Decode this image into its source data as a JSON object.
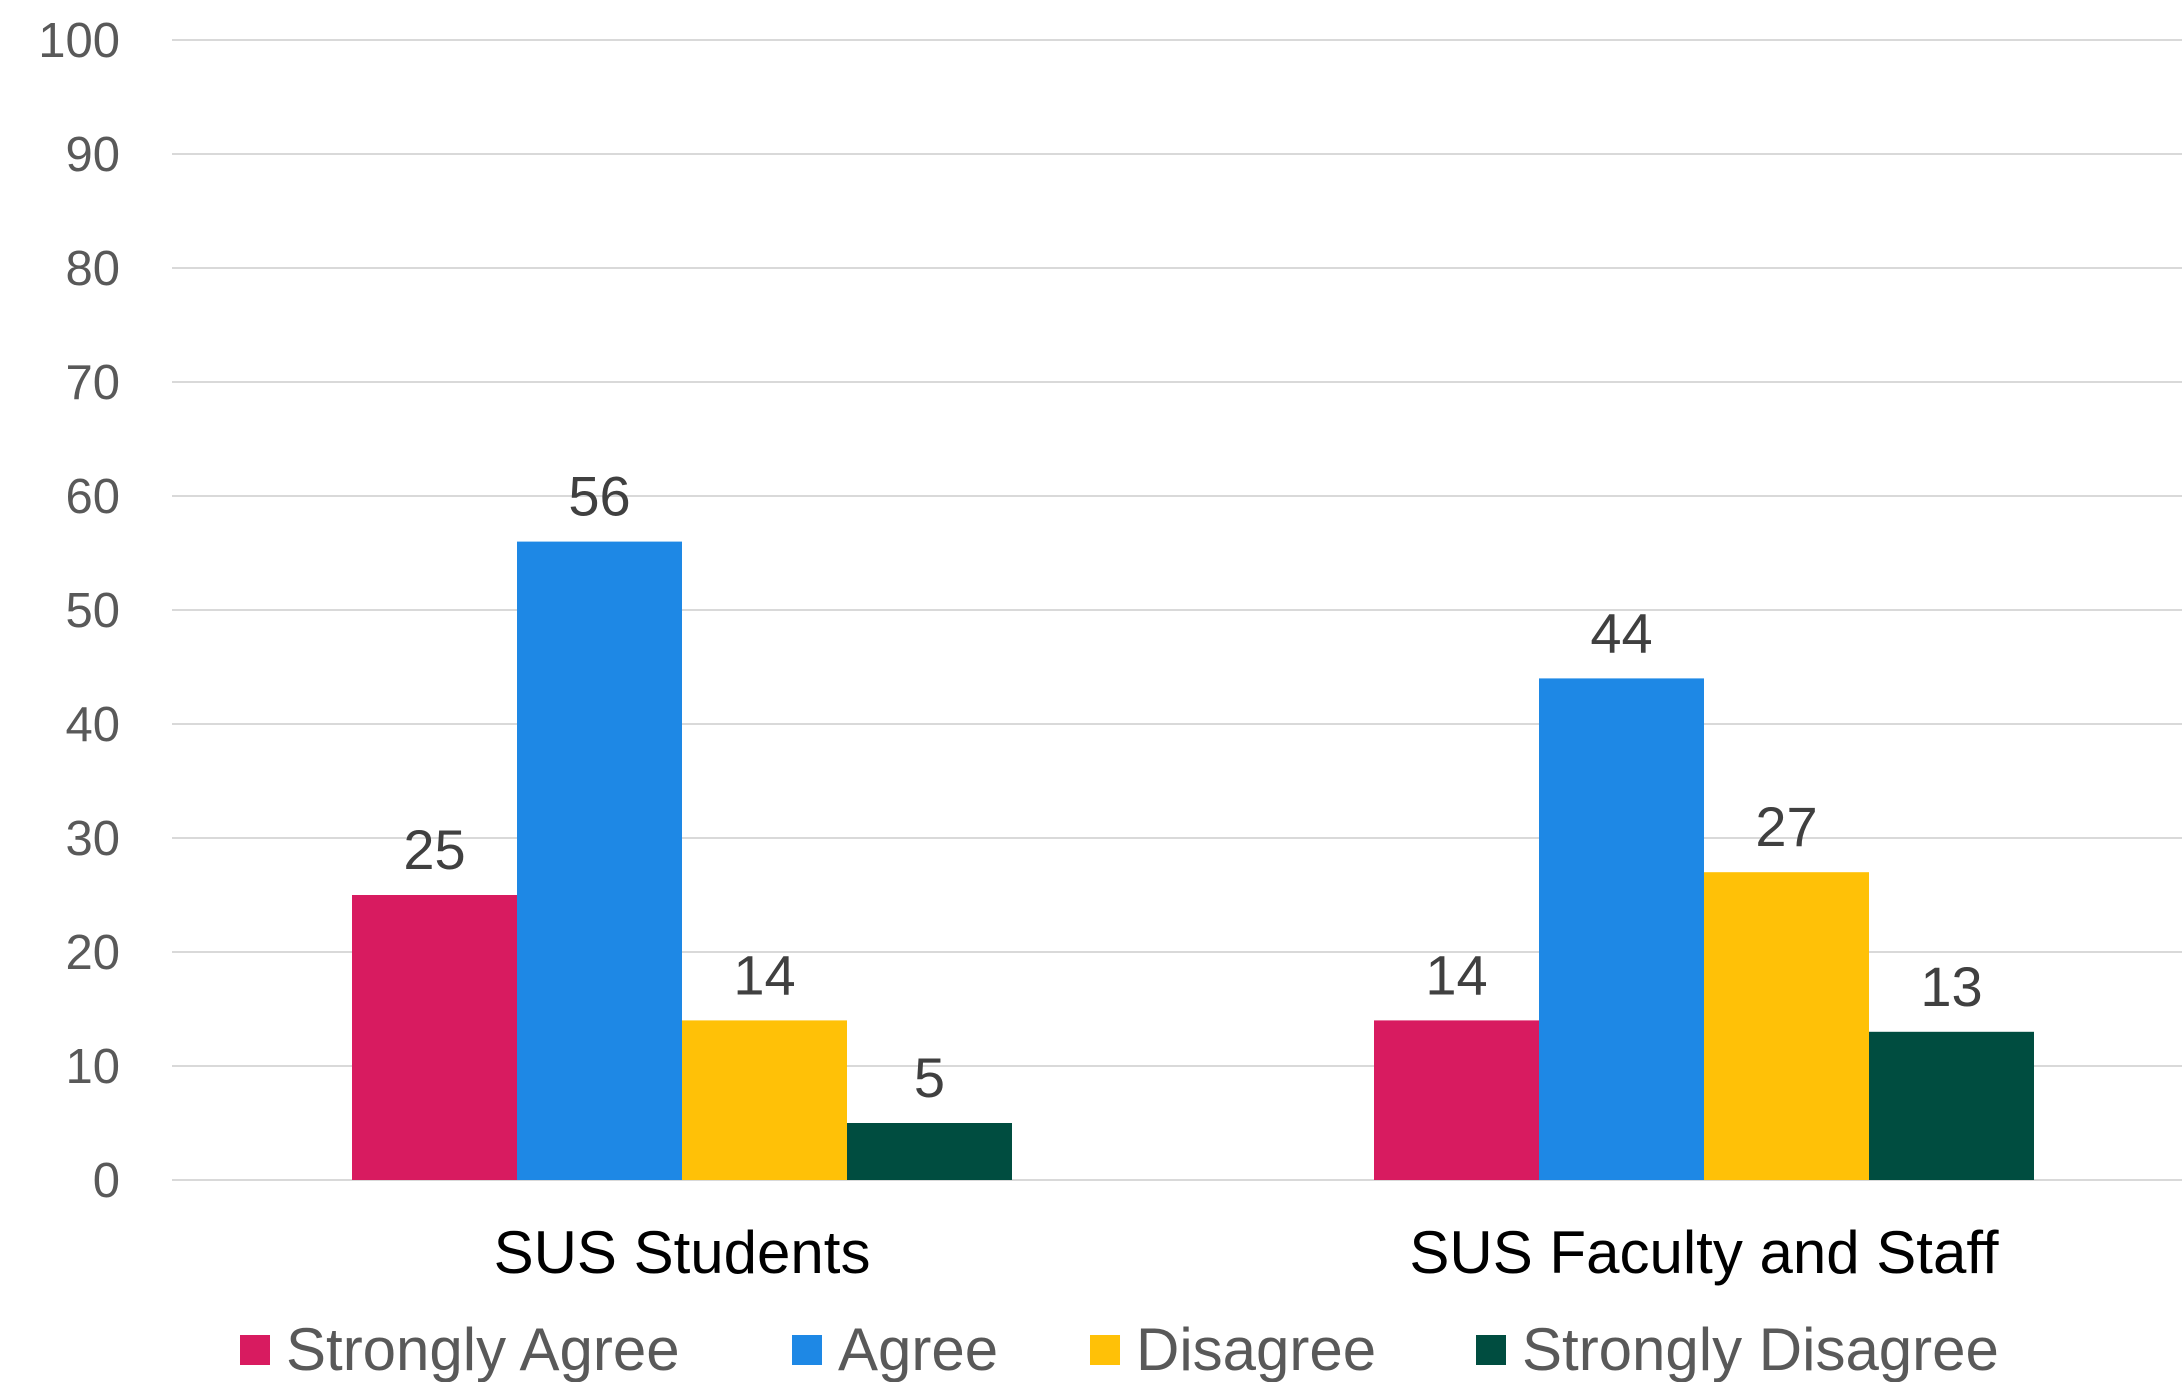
{
  "chart_data": {
    "type": "bar",
    "title": "",
    "xlabel": "",
    "ylabel": "",
    "ylim": [
      0,
      100
    ],
    "yticks": [
      "0",
      "10",
      "20",
      "30",
      "40",
      "50",
      "60",
      "70",
      "80",
      "90",
      "100"
    ],
    "grid": true,
    "legend_position": "bottom",
    "categories": [
      "SUS Students",
      "SUS Faculty and Staff"
    ],
    "series": [
      {
        "name": "Strongly Agree",
        "color": "#d81b60",
        "values": [
          25,
          14
        ]
      },
      {
        "name": "Agree",
        "color": "#1e88e5",
        "values": [
          56,
          44
        ]
      },
      {
        "name": "Disagree",
        "color": "#ffc107",
        "values": [
          14,
          27
        ]
      },
      {
        "name": "Strongly Disagree",
        "color": "#004d40",
        "values": [
          5,
          13
        ]
      }
    ]
  }
}
